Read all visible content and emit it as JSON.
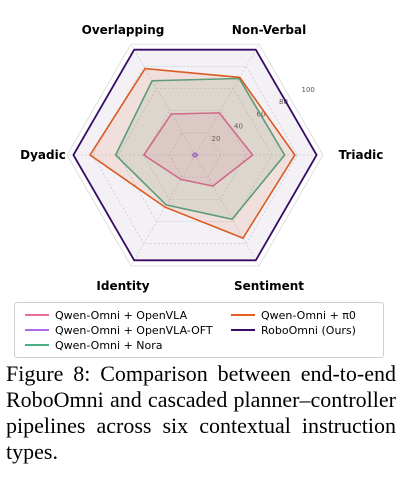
{
  "chart_data": {
    "type": "radar",
    "axes": [
      "Triadic",
      "Non-Verbal",
      "Overlapping",
      "Dyadic",
      "Identity",
      "Sentiment"
    ],
    "rlim": [
      0,
      100
    ],
    "rticks": [
      "20",
      "40",
      "60",
      "80",
      "100"
    ],
    "series": [
      {
        "name": "Qwen-Omni + OpenVLA",
        "color": "#ee6a9c",
        "values": [
          45,
          38,
          37,
          40,
          22,
          28
        ]
      },
      {
        "name": "Qwen-Omni + OpenVLA-OFT",
        "color": "#b06ae6",
        "values": [
          2,
          1.5,
          1.5,
          2,
          1.5,
          1.5
        ]
      },
      {
        "name": "Qwen-Omni + Nora",
        "color": "#4caf86",
        "values": [
          70,
          69,
          67,
          62,
          45,
          58
        ]
      },
      {
        "name": "Qwen-Omni + π0",
        "color": "#e5601f",
        "values": [
          78,
          70,
          78,
          82,
          47,
          75
        ]
      },
      {
        "name": "RoboOmni (Ours)",
        "color": "#3a0a66",
        "values": [
          95,
          95,
          95,
          95,
          95,
          95
        ]
      }
    ],
    "legend_location": "bottom",
    "grid": true
  },
  "legend": {
    "items": [
      {
        "label": "Qwen-Omni + OpenVLA",
        "color": "#ee6a9c"
      },
      {
        "label": "Qwen-Omni + π0",
        "color": "#e5601f"
      },
      {
        "label": "Qwen-Omni + OpenVLA-OFT",
        "color": "#b06ae6"
      },
      {
        "label": "RoboOmni (Ours)",
        "color": "#3a0a66"
      },
      {
        "label": "Qwen-Omni + Nora",
        "color": "#4caf86"
      }
    ]
  },
  "caption": "Figure 8: Comparison between end-to-end RoboOmni and cascaded planner–controller pipelines across six contextual instruction types."
}
